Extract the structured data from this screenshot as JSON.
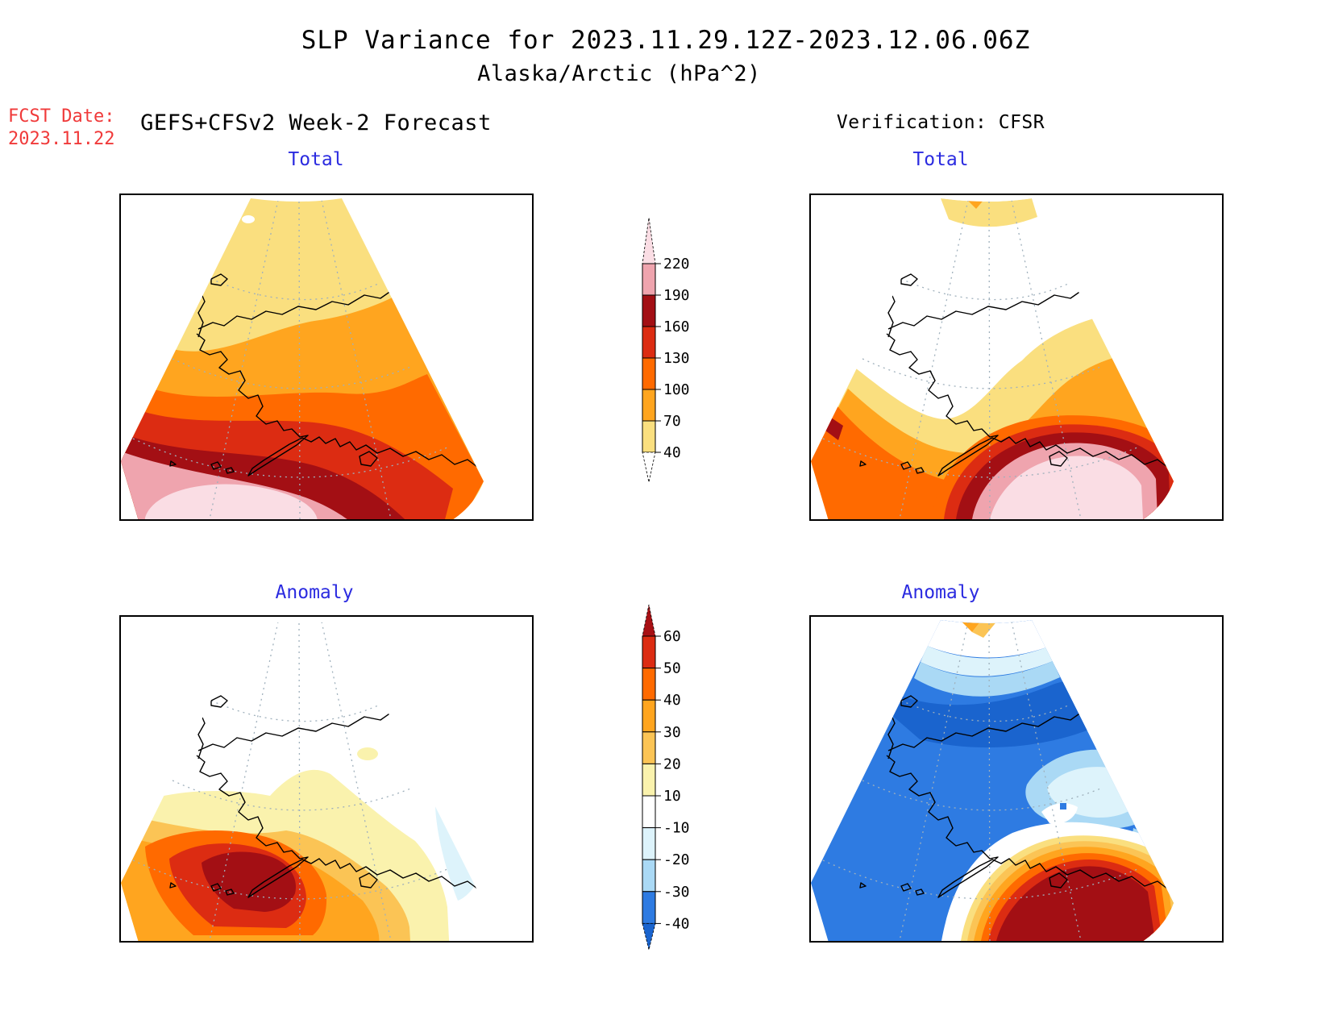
{
  "title": {
    "line1": "SLP Variance for 2023.11.29.12Z-2023.12.06.06Z",
    "line2": "Alaska/Arctic (hPa^2)"
  },
  "fcst": {
    "label": "FCST Date:",
    "date": "2023.11.22"
  },
  "left_column": {
    "header": "GEFS+CFSv2 Week-2 Forecast",
    "top_panel_label": "Total",
    "bottom_panel_label": "Anomaly"
  },
  "right_column": {
    "header": "Verification: CFSR",
    "top_panel_label": "Total",
    "bottom_panel_label": "Anomaly"
  },
  "colors": {
    "label_blue": "#2B2BE0",
    "fcst_red": "#F03A3A",
    "coastline_black": "#000000",
    "graticule_gray": "#9FB0BC"
  },
  "colorbars": {
    "total": {
      "tick_labels": [
        "220",
        "190",
        "160",
        "130",
        "100",
        "70",
        "40"
      ],
      "tip_color": "#FADDE4",
      "band_colors_top_to_bottom": [
        "#EFA4AE",
        "#A30F14",
        "#DC2C12",
        "#FF6A00",
        "#FFA51F",
        "#FADF7F"
      ],
      "tail_color": "#FFFFFF"
    },
    "anomaly": {
      "tick_labels": [
        "60",
        "50",
        "40",
        "30",
        "20",
        "10",
        "-10",
        "-20",
        "-30",
        "-40"
      ],
      "tip_color": "#A81014",
      "band_colors_top_to_bottom": [
        "#DC2C12",
        "#FF6A00",
        "#FFA51F",
        "#FBC455",
        "#FAF2AD",
        "#FFFFFF",
        "#DDF3FB",
        "#AAD9F5",
        "#2E7BE2"
      ],
      "tail_color": "#1A64CE"
    }
  },
  "chart_data": [
    {
      "type": "heatmap",
      "title": "GEFS+CFSv2 Week-2 Forecast - Total",
      "units": "hPa^2",
      "contour_levels": [
        40,
        70,
        100,
        130,
        160,
        190,
        220
      ],
      "palette": [
        "#FADF7F",
        "#FFA51F",
        "#FF6A00",
        "#DC2C12",
        "#A30F14",
        "#EFA4AE",
        "#FADDE4"
      ],
      "pattern": "Variance 40-70 hPa^2 over the Arctic north, increasing southward through 70-220 bands; maximum greater than 220 hPa^2 centered over the Bering Sea / southwest of the Alaska Peninsula, dark-red 160-190 band along the Aleutians and Gulf coast"
    },
    {
      "type": "heatmap",
      "title": "Verification: CFSR - Total",
      "units": "hPa^2",
      "contour_levels": [
        40,
        70,
        100,
        130,
        160,
        190,
        220
      ],
      "palette": [
        "#FADF7F",
        "#FFA51F",
        "#FF6A00",
        "#DC2C12",
        "#A30F14",
        "#EFA4AE",
        "#FADDE4"
      ],
      "pattern": "Variance below 40 hPa^2 (white) over the Arctic and interior Alaska; 40-70 wedge at the northern apex; strong maximum greater than 220 hPa^2 centered over the Gulf of Alaska south of the coast, with 70-160 band along the southwest edge and a small 160-190 patch on the west edge"
    },
    {
      "type": "heatmap",
      "title": "GEFS+CFSv2 Week-2 Forecast - Anomaly",
      "units": "hPa^2",
      "contour_levels": [
        -40,
        -30,
        -20,
        -10,
        10,
        20,
        30,
        40,
        50,
        60
      ],
      "palette": [
        "#1A64CE",
        "#2E7BE2",
        "#AAD9F5",
        "#DDF3FB",
        "#FFFFFF",
        "#FAF2AD",
        "#FBC455",
        "#FFA51F",
        "#FF6A00",
        "#DC2C12",
        "#A81014"
      ],
      "pattern": "Near-zero anomaly (white) over the north; positive bullseye exceeding +60 hPa^2 centered near the eastern Bering Sea / Alaska Peninsula with concentric 10-60 rings; weak negative patch (-10 to -20) over the Gulf of Alaska / southeast edge"
    },
    {
      "type": "heatmap",
      "title": "Verification: CFSR - Anomaly",
      "units": "hPa^2",
      "contour_levels": [
        -40,
        -30,
        -20,
        -10,
        10,
        20,
        30,
        40,
        50,
        60
      ],
      "palette": [
        "#1A64CE",
        "#2E7BE2",
        "#AAD9F5",
        "#DDF3FB",
        "#FFFFFF",
        "#FAF2AD",
        "#FBC455",
        "#FFA51F",
        "#FF6A00",
        "#DC2C12",
        "#A81014"
      ],
      "pattern": "Broad negative anomaly -30 to below -40 hPa^2 over the Bering Sea, Arctic and western Alaska; strong positive anomaly exceeding +60 hPa^2 over the Gulf of Alaska with thin 10-60 rings; near-zero white band along the south-central coast and small positive wedge at the northern apex"
    }
  ]
}
